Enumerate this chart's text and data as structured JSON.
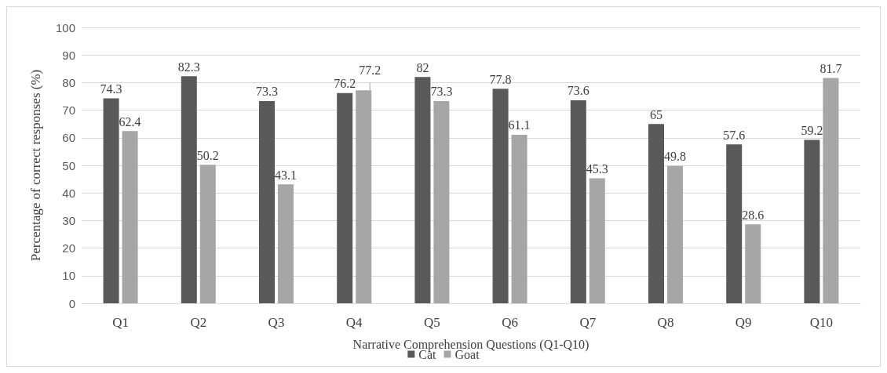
{
  "chart_data": {
    "type": "bar",
    "xlabel": "Narrative Comprehension Questions (Q1-Q10)",
    "ylabel": "Percentage of correct responses (%)",
    "categories": [
      "Q1",
      "Q2",
      "Q3",
      "Q4",
      "Q5",
      "Q6",
      "Q7",
      "Q8",
      "Q9",
      "Q10"
    ],
    "series": [
      {
        "name": "Cat",
        "color": "#595959",
        "values": [
          74.3,
          82.3,
          73.3,
          76.2,
          82,
          77.8,
          73.6,
          65,
          57.6,
          59.2
        ]
      },
      {
        "name": "Goat",
        "color": "#a6a6a6",
        "values": [
          62.4,
          50.2,
          43.1,
          77.2,
          73.3,
          61.1,
          45.3,
          49.8,
          28.6,
          81.7
        ]
      }
    ],
    "ylim": [
      0,
      100
    ],
    "yticks": [
      0,
      10,
      20,
      30,
      40,
      50,
      60,
      70,
      80,
      90,
      100
    ],
    "grid": "y",
    "legend": "bottom",
    "data_labels": true
  }
}
